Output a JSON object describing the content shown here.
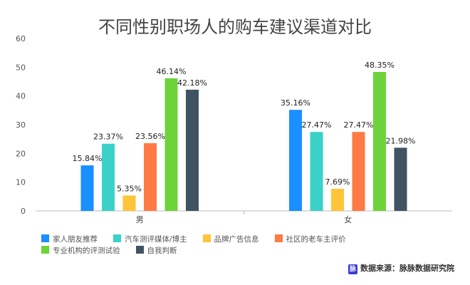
{
  "chart_data": {
    "type": "bar",
    "title": "不同性别职场人的购车建议渠道对比",
    "categories": [
      "男",
      "女"
    ],
    "ylim": [
      0,
      60
    ],
    "yticks": [
      0,
      10,
      20,
      30,
      40,
      50,
      60
    ],
    "grid": false,
    "legend_position": "bottom",
    "series": [
      {
        "name": "家人朋友推荐",
        "color": "#1a8fff",
        "values": [
          15.84,
          35.16
        ],
        "labels": [
          "15.84%",
          "35.16%"
        ]
      },
      {
        "name": "汽车测评媒体/博主",
        "color": "#3ad1c8",
        "values": [
          23.37,
          27.47
        ],
        "labels": [
          "23.37%",
          "27.47%"
        ]
      },
      {
        "name": "品牌广告信息",
        "color": "#ffc43a",
        "values": [
          5.35,
          7.69
        ],
        "labels": [
          "5.35%",
          "7.69%"
        ]
      },
      {
        "name": "社区的老车主评价",
        "color": "#ff7a45",
        "values": [
          23.56,
          27.47
        ],
        "labels": [
          "23.56%",
          "27.47%"
        ]
      },
      {
        "name": "专业机构的评测试验",
        "color": "#6cd43a",
        "values": [
          46.14,
          48.35
        ],
        "labels": [
          "46.14%",
          "48.35%"
        ]
      },
      {
        "name": "自我判断",
        "color": "#3f5362",
        "values": [
          42.18,
          21.98
        ],
        "labels": [
          "42.18%",
          "21.98%"
        ]
      }
    ]
  },
  "source": {
    "logo_text": "脉",
    "label": "数据来源：脉脉数据研究院"
  }
}
